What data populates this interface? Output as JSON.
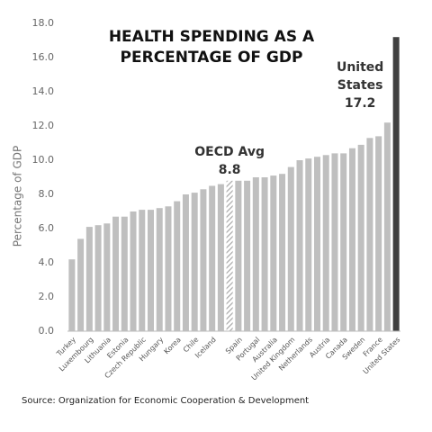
{
  "chart_data": {
    "type": "bar",
    "title": "HEALTH SPENDING AS A PERCENTAGE OF GDP",
    "y_label": "Percentage of GDP",
    "source": "Source: Organization for Economic Cooperation & Development",
    "categories": [
      "Turkey",
      null,
      "Luxembourg",
      null,
      "Lithuania",
      null,
      "Estonia",
      null,
      "Czech Republic",
      null,
      "Hungary",
      null,
      "Korea",
      null,
      "Chile",
      null,
      "Iceland",
      null,
      null,
      "Spain",
      null,
      "Portugal",
      null,
      "Australia",
      null,
      "United Kingdom",
      null,
      "Netherlands",
      null,
      "Austria",
      null,
      "Canada",
      null,
      "Sweden",
      null,
      "France",
      null,
      "United States"
    ],
    "values": [
      4.2,
      5.4,
      6.1,
      6.2,
      6.3,
      6.7,
      6.7,
      7.0,
      7.1,
      7.1,
      7.2,
      7.3,
      7.6,
      8.0,
      8.1,
      8.3,
      8.5,
      8.6,
      8.8,
      8.8,
      8.8,
      9.0,
      9.0,
      9.1,
      9.2,
      9.6,
      10.0,
      10.1,
      10.2,
      10.3,
      10.4,
      10.4,
      10.7,
      10.9,
      11.3,
      11.4,
      12.2,
      17.2
    ],
    "value_labels": [
      null,
      null,
      null,
      null,
      null,
      null,
      null,
      null,
      null,
      null,
      null,
      null,
      null,
      null,
      null,
      null,
      null,
      null,
      "8.8",
      null,
      null,
      null,
      null,
      null,
      null,
      null,
      null,
      null,
      null,
      null,
      null,
      null,
      null,
      null,
      null,
      null,
      null,
      "17.2"
    ],
    "annotations": [
      {
        "text": "OECD Avg",
        "index": 18
      },
      {
        "text": "United States",
        "index": 37
      }
    ],
    "color": "#bfbfbf",
    "highlight_color": "#404040",
    "hatched_index": 18,
    "highlight_index": 37,
    "ylim": [
      0,
      18
    ],
    "yticks": [
      {
        "value": 0,
        "label": "0.0"
      },
      {
        "value": 2,
        "label": "2.0"
      },
      {
        "value": 4,
        "label": "4.0"
      },
      {
        "value": 6,
        "label": "6.0"
      },
      {
        "value": 8,
        "label": "8.0"
      },
      {
        "value": 10,
        "label": "10.0"
      },
      {
        "value": 12,
        "label": "12.0"
      },
      {
        "value": 14,
        "label": "14.0"
      },
      {
        "value": 16,
        "label": "16.0"
      },
      {
        "value": 18,
        "label": "18.0"
      }
    ],
    "grid": false
  }
}
